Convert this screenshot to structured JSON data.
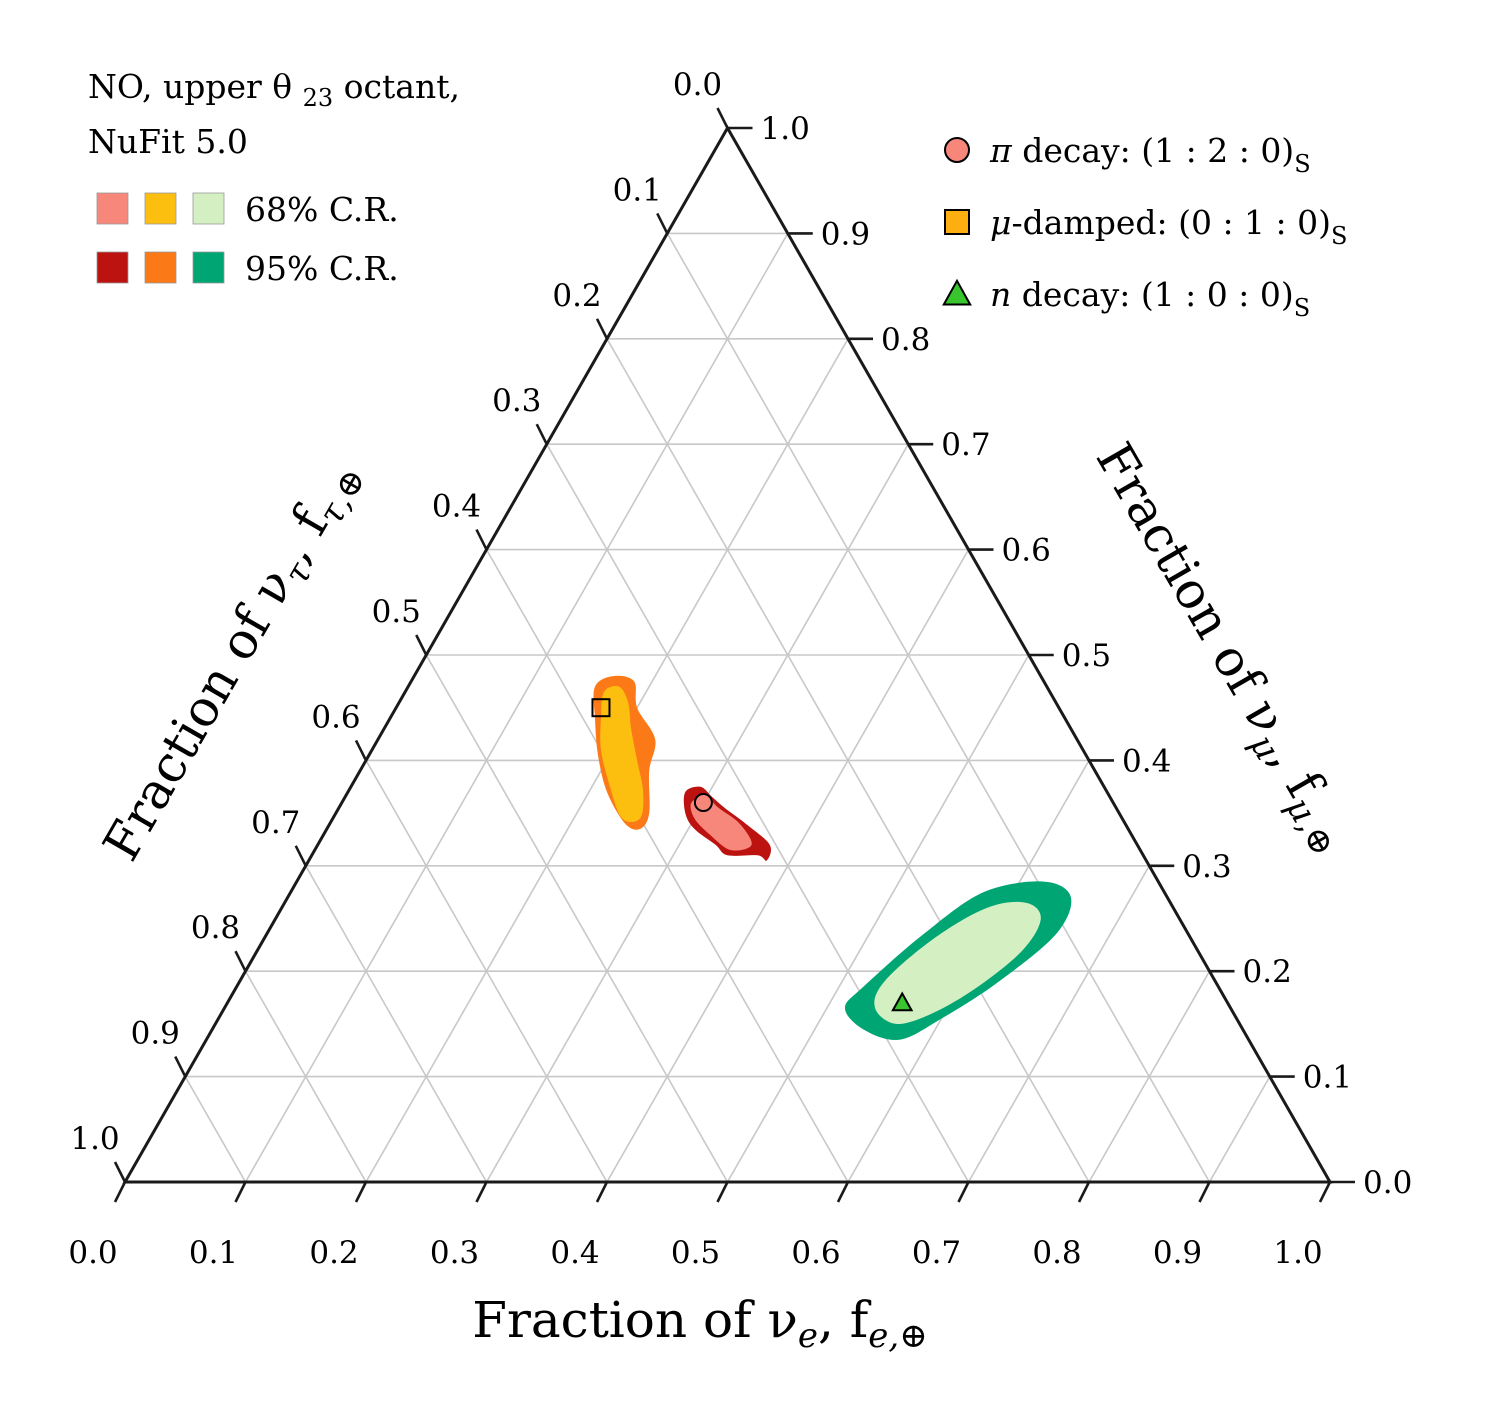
{
  "chart_data": {
    "type": "ternary",
    "annotation": [
      "NO, upper θ23 octant,",
      "NuFit 5.0"
    ],
    "annotation_sub": "23",
    "axes": {
      "fe": {
        "label": "Fraction of νe, fe,⊕",
        "parts": [
          "Fraction of ν",
          "e",
          ", f",
          "e,⊕"
        ]
      },
      "fmu": {
        "label": "Fraction of νμ, fμ,⊕",
        "parts": [
          "Fraction of ν",
          "μ",
          ", f",
          "μ,⊕"
        ]
      },
      "ftau": {
        "label": "Fraction of ντ, fτ,⊕",
        "parts": [
          "Fraction of ν",
          "τ",
          ", f",
          "τ,⊕"
        ]
      },
      "ticks": [
        "0.0",
        "0.1",
        "0.2",
        "0.3",
        "0.4",
        "0.5",
        "0.6",
        "0.7",
        "0.8",
        "0.9",
        "1.0"
      ],
      "range": [
        0,
        1
      ]
    },
    "grid": true,
    "legend_regions": {
      "placement": "top-left",
      "entries": [
        {
          "label": "68% C.R.",
          "colors": [
            "#f7867b",
            "#fdbf0f",
            "#d4f0c3"
          ]
        },
        {
          "label": "95% C.R.",
          "colors": [
            "#bd1310",
            "#fb7a17",
            "#00a574"
          ]
        }
      ]
    },
    "legend_points": {
      "placement": "top-right",
      "entries": [
        {
          "label": "π decay: (1 : 2 : 0)S",
          "text": "π decay: (1 : 2 : 0)",
          "sub": "S",
          "marker": "circle",
          "color": "#f7867b"
        },
        {
          "label": "μ-damped: (0 : 1 : 0)S",
          "text": "μ-damped: (0 : 1 : 0)",
          "sub": "S",
          "marker": "square",
          "color": "#fdaf12"
        },
        {
          "label": "n decay: (1 : 0 : 0)S",
          "text": "n decay: (1 : 0 : 0)",
          "sub": "S",
          "marker": "triangle",
          "color": "#38c52e"
        }
      ]
    },
    "points": [
      {
        "name": "π decay",
        "fe": 0.3,
        "fmu": 0.36,
        "ftau": 0.34
      },
      {
        "name": "μ-damped",
        "fe": 0.17,
        "fmu": 0.45,
        "ftau": 0.38
      },
      {
        "name": "n decay",
        "fe": 0.56,
        "fmu": 0.17,
        "ftau": 0.27
      }
    ],
    "regions": [
      {
        "source": "π decay",
        "level": "95%",
        "color": "#bd1310",
        "vertices": [
          [
            0.28,
            0.37,
            0.35
          ],
          [
            0.29,
            0.375,
            0.335
          ],
          [
            0.305,
            0.365,
            0.33
          ],
          [
            0.32,
            0.355,
            0.325
          ],
          [
            0.345,
            0.34,
            0.315
          ],
          [
            0.375,
            0.32,
            0.305
          ],
          [
            0.38,
            0.305,
            0.315
          ],
          [
            0.37,
            0.31,
            0.32
          ],
          [
            0.345,
            0.31,
            0.345
          ],
          [
            0.33,
            0.32,
            0.35
          ],
          [
            0.305,
            0.335,
            0.36
          ],
          [
            0.29,
            0.35,
            0.36
          ]
        ]
      },
      {
        "source": "π decay",
        "level": "68%",
        "color": "#f7867b",
        "vertices": [
          [
            0.29,
            0.36,
            0.35
          ],
          [
            0.3,
            0.365,
            0.335
          ],
          [
            0.315,
            0.355,
            0.33
          ],
          [
            0.34,
            0.34,
            0.32
          ],
          [
            0.36,
            0.32,
            0.32
          ],
          [
            0.345,
            0.315,
            0.34
          ],
          [
            0.32,
            0.33,
            0.35
          ],
          [
            0.3,
            0.345,
            0.355
          ]
        ]
      },
      {
        "source": "μ-damped",
        "level": "95%",
        "color": "#fb7a17",
        "vertices": [
          [
            0.155,
            0.47,
            0.375
          ],
          [
            0.165,
            0.48,
            0.355
          ],
          [
            0.185,
            0.475,
            0.34
          ],
          [
            0.2,
            0.45,
            0.35
          ],
          [
            0.23,
            0.42,
            0.35
          ],
          [
            0.24,
            0.39,
            0.37
          ],
          [
            0.26,
            0.35,
            0.39
          ],
          [
            0.26,
            0.335,
            0.405
          ],
          [
            0.245,
            0.34,
            0.415
          ],
          [
            0.215,
            0.37,
            0.415
          ],
          [
            0.19,
            0.405,
            0.405
          ],
          [
            0.17,
            0.44,
            0.39
          ]
        ]
      },
      {
        "source": "μ-damped",
        "level": "68%",
        "color": "#fdbf0f",
        "vertices": [
          [
            0.165,
            0.465,
            0.37
          ],
          [
            0.175,
            0.47,
            0.355
          ],
          [
            0.19,
            0.455,
            0.355
          ],
          [
            0.205,
            0.43,
            0.365
          ],
          [
            0.225,
            0.4,
            0.375
          ],
          [
            0.245,
            0.37,
            0.385
          ],
          [
            0.255,
            0.345,
            0.4
          ],
          [
            0.24,
            0.345,
            0.415
          ],
          [
            0.215,
            0.375,
            0.41
          ],
          [
            0.19,
            0.41,
            0.4
          ],
          [
            0.175,
            0.44,
            0.385
          ]
        ]
      },
      {
        "source": "n decay",
        "level": "95%",
        "color": "#00a574",
        "vertices": [
          [
            0.52,
            0.185,
            0.295
          ],
          [
            0.545,
            0.235,
            0.22
          ],
          [
            0.575,
            0.275,
            0.15
          ],
          [
            0.62,
            0.285,
            0.095
          ],
          [
            0.65,
            0.27,
            0.08
          ],
          [
            0.655,
            0.235,
            0.11
          ],
          [
            0.63,
            0.19,
            0.18
          ],
          [
            0.6,
            0.155,
            0.245
          ],
          [
            0.575,
            0.135,
            0.29
          ],
          [
            0.54,
            0.145,
            0.315
          ],
          [
            0.515,
            0.165,
            0.32
          ]
        ]
      },
      {
        "source": "n decay",
        "level": "68%",
        "color": "#d4f0c3",
        "vertices": [
          [
            0.535,
            0.19,
            0.275
          ],
          [
            0.555,
            0.23,
            0.215
          ],
          [
            0.585,
            0.26,
            0.155
          ],
          [
            0.615,
            0.265,
            0.12
          ],
          [
            0.635,
            0.25,
            0.115
          ],
          [
            0.635,
            0.22,
            0.145
          ],
          [
            0.615,
            0.185,
            0.2
          ],
          [
            0.59,
            0.16,
            0.25
          ],
          [
            0.565,
            0.15,
            0.285
          ],
          [
            0.54,
            0.165,
            0.295
          ]
        ]
      }
    ]
  }
}
